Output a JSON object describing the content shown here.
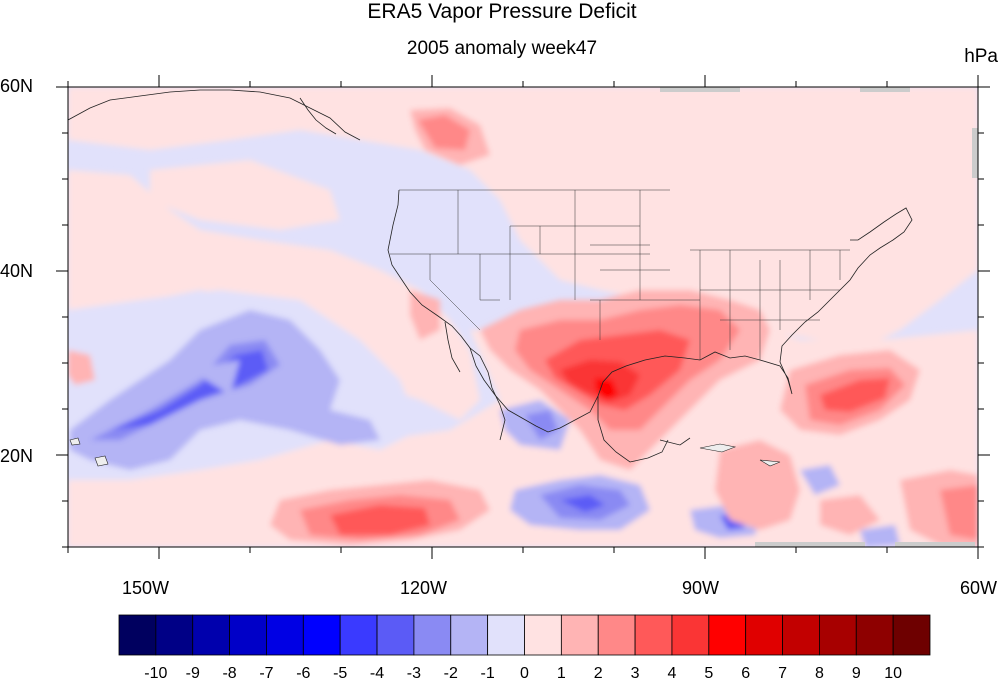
{
  "title": "ERA5 Vapor Pressure Deficit",
  "subtitle": "2005 anomaly week47",
  "units": "hPa",
  "map": {
    "region": "Contiguous United States, eastern Pacific, Gulf of Mexico, Caribbean",
    "lon_range": [
      -160,
      -60
    ],
    "lat_range": [
      10,
      60
    ],
    "lat_ticks": [
      {
        "value": 60,
        "label": "60N"
      },
      {
        "value": 40,
        "label": "40N"
      },
      {
        "value": 20,
        "label": "20N"
      }
    ],
    "lon_ticks": [
      {
        "value": -150,
        "label": "150W"
      },
      {
        "value": -120,
        "label": "120W"
      },
      {
        "value": -90,
        "label": "90W"
      },
      {
        "value": -60,
        "label": "60W"
      }
    ],
    "features": [
      {
        "name": "texas-maximum",
        "lon": -102,
        "lat": 27.5,
        "value": 6
      },
      {
        "name": "north-atlantic-positive",
        "lon": -75,
        "lat": 25,
        "value": 4
      },
      {
        "name": "eastern-pacific-positive",
        "lon": -132,
        "lat": 14,
        "value": 4
      },
      {
        "name": "hawaii-plume-negative",
        "lon": -150,
        "lat": 27,
        "value": -3
      },
      {
        "name": "gulf-of-california-negative",
        "lon": -112,
        "lat": 22,
        "value": -2
      },
      {
        "name": "central-american-negative",
        "lon": -104,
        "lat": 14,
        "value": -3
      },
      {
        "name": "caribbean-negative",
        "lon": -87,
        "lat": 13,
        "value": -4
      }
    ]
  },
  "colorbar": {
    "labels": [
      "-10",
      "-9",
      "-8",
      "-7",
      "-6",
      "-5",
      "-4",
      "-3",
      "-2",
      "-1",
      "0",
      "1",
      "2",
      "3",
      "4",
      "5",
      "6",
      "7",
      "8",
      "9",
      "10"
    ],
    "colors": [
      "#00005f",
      "#000086",
      "#0000ad",
      "#0000c8",
      "#0000e4",
      "#0000ff",
      "#3a3aff",
      "#5b5bf6",
      "#8a8af3",
      "#b4b4f5",
      "#e1e1fb",
      "#ffe2e2",
      "#ffb4b4",
      "#ff8888",
      "#ff5959",
      "#fa3535",
      "#ff0000",
      "#e00000",
      "#c20000",
      "#a70000",
      "#8e0000",
      "#6e0000"
    ]
  }
}
